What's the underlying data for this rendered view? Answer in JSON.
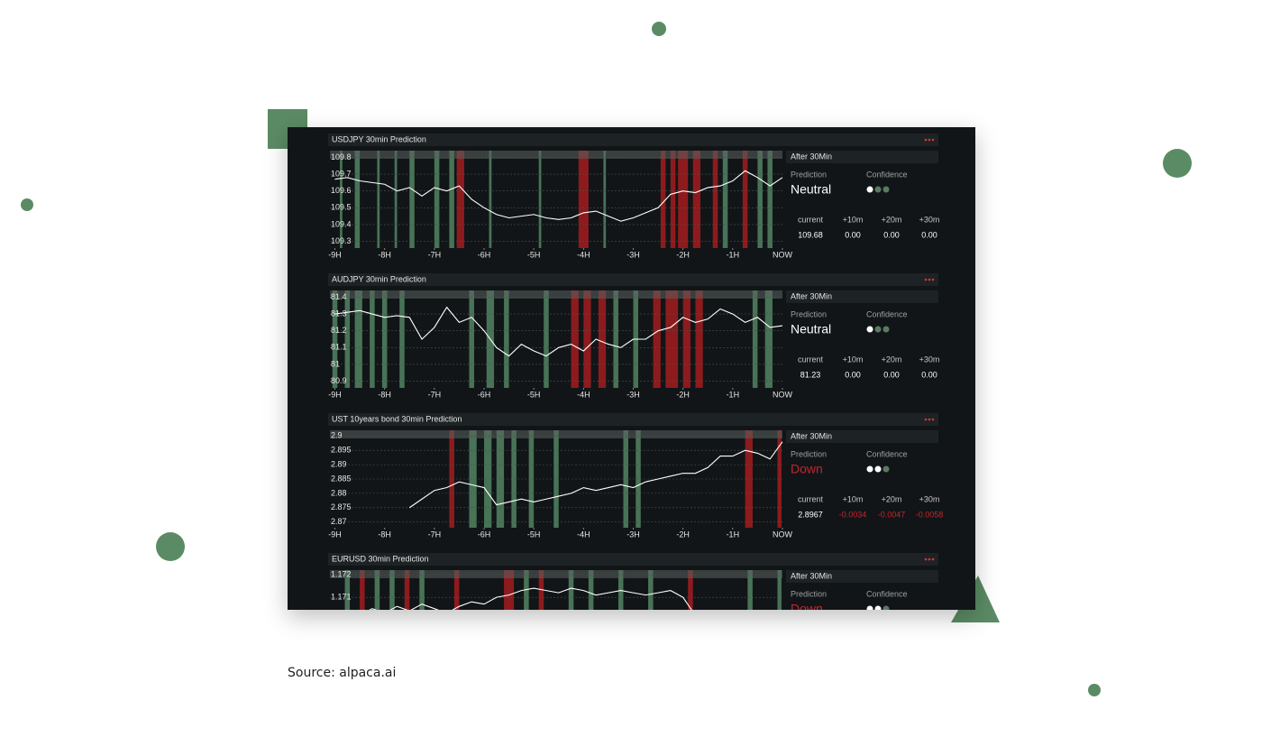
{
  "caption": "Source: alpaca.ai",
  "chart_data": [
    {
      "type": "line",
      "title": "USDJPY 30min Prediction",
      "x": [
        -9,
        -8.75,
        -8.5,
        -8.25,
        -8,
        -7.75,
        -7.5,
        -7.25,
        -7,
        -6.75,
        -6.5,
        -6.25,
        -6,
        -5.75,
        -5.5,
        -5.25,
        -5,
        -4.75,
        -4.5,
        -4.25,
        -4,
        -3.75,
        -3.5,
        -3.25,
        -3,
        -2.75,
        -2.5,
        -2.25,
        -2,
        -1.75,
        -1.5,
        -1.25,
        -1,
        -0.75,
        -0.5,
        -0.25,
        0
      ],
      "values": [
        109.67,
        109.68,
        109.66,
        109.65,
        109.64,
        109.6,
        109.62,
        109.57,
        109.62,
        109.6,
        109.63,
        109.55,
        109.5,
        109.46,
        109.44,
        109.45,
        109.46,
        109.44,
        109.43,
        109.44,
        109.47,
        109.48,
        109.45,
        109.42,
        109.44,
        109.47,
        109.5,
        109.58,
        109.6,
        109.59,
        109.62,
        109.63,
        109.66,
        109.72,
        109.68,
        109.63,
        109.68
      ],
      "color": "#ffffff",
      "xlim": [
        -9.1,
        0
      ],
      "xticks": [
        {
          "value": -9,
          "label": "-9H"
        },
        {
          "value": -8,
          "label": "-8H"
        },
        {
          "value": -7,
          "label": "-7H"
        },
        {
          "value": -6,
          "label": "-6H"
        },
        {
          "value": -5,
          "label": "-5H"
        },
        {
          "value": -4,
          "label": "-4H"
        },
        {
          "value": -3,
          "label": "-3H"
        },
        {
          "value": -2,
          "label": "-2H"
        },
        {
          "value": -1,
          "label": "-1H"
        },
        {
          "value": 0,
          "label": "NOW"
        }
      ],
      "ylim": [
        109.26,
        109.84
      ],
      "yticks": [
        109.8,
        109.7,
        109.6,
        109.5,
        109.4,
        109.3
      ],
      "grid": true,
      "bands": [
        {
          "color": "#4f7d5d",
          "ranges": [
            [
              -8.9,
              -8.85
            ],
            [
              -8.6,
              -8.5
            ],
            [
              -8.15,
              -8.1
            ],
            [
              -7.8,
              -7.75
            ],
            [
              -7.5,
              -7.4
            ],
            [
              -7.0,
              -6.9
            ],
            [
              -6.7,
              -6.6
            ],
            [
              -5.9,
              -5.85
            ],
            [
              -4.9,
              -4.85
            ],
            [
              -3.6,
              -3.55
            ],
            [
              -1.2,
              -1.1
            ],
            [
              -0.5,
              -0.4
            ],
            [
              -0.3,
              -0.2
            ]
          ]
        },
        {
          "color": "#9b1c1f",
          "ranges": [
            [
              -6.55,
              -6.4
            ],
            [
              -4.1,
              -3.9
            ],
            [
              -2.45,
              -2.35
            ],
            [
              -2.25,
              -2.15
            ],
            [
              -2.1,
              -1.9
            ],
            [
              -1.8,
              -1.65
            ],
            [
              -1.4,
              -1.3
            ],
            [
              -0.8,
              -0.7
            ]
          ]
        }
      ]
    },
    {
      "type": "line",
      "title": "AUDJPY 30min Prediction",
      "x": [
        -9,
        -8.75,
        -8.5,
        -8.25,
        -8,
        -7.75,
        -7.5,
        -7.25,
        -7,
        -6.75,
        -6.5,
        -6.25,
        -6,
        -5.75,
        -5.5,
        -5.25,
        -5,
        -4.75,
        -4.5,
        -4.25,
        -4,
        -3.75,
        -3.5,
        -3.25,
        -3,
        -2.75,
        -2.5,
        -2.25,
        -2,
        -1.75,
        -1.5,
        -1.25,
        -1,
        -0.75,
        -0.5,
        -0.25,
        0
      ],
      "values": [
        81.3,
        81.31,
        81.32,
        81.3,
        81.28,
        81.29,
        81.28,
        81.15,
        81.22,
        81.34,
        81.25,
        81.28,
        81.2,
        81.1,
        81.05,
        81.12,
        81.08,
        81.05,
        81.1,
        81.12,
        81.08,
        81.15,
        81.12,
        81.1,
        81.15,
        81.15,
        81.2,
        81.22,
        81.28,
        81.25,
        81.27,
        81.33,
        81.3,
        81.25,
        81.28,
        81.22,
        81.23
      ],
      "color": "#ffffff",
      "xlim": [
        -9.1,
        0
      ],
      "xticks": [
        {
          "value": -9,
          "label": "-9H"
        },
        {
          "value": -8,
          "label": "-8H"
        },
        {
          "value": -7,
          "label": "-7H"
        },
        {
          "value": -6,
          "label": "-6H"
        },
        {
          "value": -5,
          "label": "-5H"
        },
        {
          "value": -4,
          "label": "-4H"
        },
        {
          "value": -3,
          "label": "-3H"
        },
        {
          "value": -2,
          "label": "-2H"
        },
        {
          "value": -1,
          "label": "-1H"
        },
        {
          "value": 0,
          "label": "NOW"
        }
      ],
      "ylim": [
        80.86,
        81.44
      ],
      "yticks": [
        81.4,
        81.3,
        81.2,
        81.1,
        81,
        80.9
      ],
      "grid": true,
      "bands": [
        {
          "color": "#4f7d5d",
          "ranges": [
            [
              -9.05,
              -8.95
            ],
            [
              -8.8,
              -8.7
            ],
            [
              -8.6,
              -8.45
            ],
            [
              -8.3,
              -8.2
            ],
            [
              -8.05,
              -7.95
            ],
            [
              -7.7,
              -7.6
            ],
            [
              -6.3,
              -6.2
            ],
            [
              -5.95,
              -5.8
            ],
            [
              -5.6,
              -5.5
            ],
            [
              -4.8,
              -4.7
            ],
            [
              -3.4,
              -3.3
            ],
            [
              -3.0,
              -2.9
            ],
            [
              -0.6,
              -0.5
            ],
            [
              -0.35,
              -0.2
            ]
          ]
        },
        {
          "color": "#9b1c1f",
          "ranges": [
            [
              -4.25,
              -4.1
            ],
            [
              -4.0,
              -3.85
            ],
            [
              -3.7,
              -3.55
            ],
            [
              -2.6,
              -2.45
            ],
            [
              -2.35,
              -2.1
            ],
            [
              -2.0,
              -1.85
            ],
            [
              -1.75,
              -1.6
            ]
          ]
        }
      ]
    },
    {
      "type": "line",
      "title": "UST 10years bond 30min Prediction",
      "x": [
        -9,
        -8.75,
        -8.5,
        -8.25,
        -8,
        -7.75,
        -7.5,
        -7.25,
        -7,
        -6.75,
        -6.5,
        -6.25,
        -6,
        -5.75,
        -5.5,
        -5.25,
        -5,
        -4.75,
        -4.5,
        -4.25,
        -4,
        -3.75,
        -3.5,
        -3.25,
        -3,
        -2.75,
        -2.5,
        -2.25,
        -2,
        -1.75,
        -1.5,
        -1.25,
        -1,
        -0.75,
        -0.5,
        -0.25,
        0
      ],
      "values": [
        null,
        null,
        null,
        null,
        null,
        null,
        2.875,
        2.878,
        2.881,
        2.882,
        2.884,
        2.883,
        2.882,
        2.876,
        2.877,
        2.878,
        2.877,
        2.878,
        2.879,
        2.88,
        2.882,
        2.881,
        2.882,
        2.883,
        2.882,
        2.884,
        2.885,
        2.886,
        2.887,
        2.887,
        2.889,
        2.893,
        2.893,
        2.895,
        2.894,
        2.892,
        2.898
      ],
      "color": "#ffffff",
      "xlim": [
        -9.1,
        0
      ],
      "xticks": [
        {
          "value": -9,
          "label": "-9H"
        },
        {
          "value": -8,
          "label": "-8H"
        },
        {
          "value": -7,
          "label": "-7H"
        },
        {
          "value": -6,
          "label": "-6H"
        },
        {
          "value": -5,
          "label": "-5H"
        },
        {
          "value": -4,
          "label": "-4H"
        },
        {
          "value": -3,
          "label": "-3H"
        },
        {
          "value": -2,
          "label": "-2H"
        },
        {
          "value": -1,
          "label": "-1H"
        },
        {
          "value": 0,
          "label": "NOW"
        }
      ],
      "ylim": [
        2.868,
        2.902
      ],
      "yticks": [
        2.9,
        2.895,
        2.89,
        2.885,
        2.88,
        2.875,
        2.87
      ],
      "grid": true,
      "bands": [
        {
          "color": "#4f7d5d",
          "ranges": [
            [
              -6.3,
              -6.15
            ],
            [
              -6.0,
              -5.85
            ],
            [
              -5.75,
              -5.6
            ],
            [
              -5.45,
              -5.35
            ],
            [
              -5.1,
              -5.0
            ],
            [
              -4.6,
              -4.5
            ],
            [
              -3.2,
              -3.1
            ],
            [
              -2.95,
              -2.85
            ]
          ]
        },
        {
          "color": "#9b1c1f",
          "ranges": [
            [
              -6.7,
              -6.6
            ],
            [
              -0.75,
              -0.6
            ],
            [
              -0.1,
              -0.02
            ]
          ]
        }
      ]
    },
    {
      "type": "line",
      "title": "EURUSD 30min Prediction",
      "x": [
        -9,
        -8.75,
        -8.5,
        -8.25,
        -8,
        -7.75,
        -7.5,
        -7.25,
        -7,
        -6.75,
        -6.5,
        -6.25,
        -6,
        -5.75,
        -5.5,
        -5.25,
        -5,
        -4.75,
        -4.5,
        -4.25,
        -4,
        -3.75,
        -3.5,
        -3.25,
        -3,
        -2.75,
        -2.5,
        -2.25,
        -2,
        -1.75,
        -1.5,
        -1.25,
        -1,
        -0.75,
        -0.5,
        -0.25,
        0
      ],
      "values": [
        1.1703,
        1.1704,
        1.1702,
        1.1705,
        1.1703,
        1.1706,
        1.1704,
        1.1707,
        1.1705,
        1.1703,
        1.1706,
        1.1708,
        1.1707,
        1.171,
        1.1711,
        1.1713,
        1.1714,
        1.1713,
        1.1712,
        1.1714,
        1.1713,
        1.1711,
        1.1712,
        1.1713,
        1.1712,
        1.1711,
        1.1712,
        1.1713,
        1.171,
        1.1702,
        1.1699,
        1.1696,
        null,
        null,
        null,
        null,
        null
      ],
      "color": "#ffffff",
      "xlim": [
        -9.1,
        0
      ],
      "ylim": [
        1.1679,
        1.1722
      ],
      "yticks": [
        1.172,
        1.171
      ],
      "grid": true,
      "bands": [
        {
          "color": "#4f7d5d",
          "ranges": [
            [
              -8.8,
              -8.7
            ],
            [
              -8.2,
              -8.1
            ],
            [
              -7.9,
              -7.8
            ],
            [
              -7.3,
              -7.2
            ],
            [
              -5.2,
              -5.1
            ],
            [
              -4.3,
              -4.2
            ],
            [
              -3.9,
              -3.8
            ],
            [
              -3.3,
              -3.2
            ],
            [
              -2.7,
              -2.6
            ],
            [
              -0.7,
              -0.6
            ],
            [
              -0.1,
              -0.02
            ]
          ]
        },
        {
          "color": "#9b1c1f",
          "ranges": [
            [
              -8.5,
              -8.4
            ],
            [
              -7.6,
              -7.5
            ],
            [
              -6.6,
              -6.5
            ],
            [
              -5.6,
              -5.4
            ],
            [
              -4.9,
              -4.8
            ],
            [
              -1.9,
              -1.8
            ]
          ]
        }
      ]
    }
  ],
  "side_panels": [
    {
      "header": "After 30Min",
      "prediction_label": "Prediction",
      "prediction": "Neutral",
      "prediction_color": "#ffffff",
      "confidence_label": "Confidence",
      "confidence": 1,
      "confidence_levels": 3,
      "table": {
        "headers": [
          "current",
          "+10m",
          "+20m",
          "+30m"
        ],
        "values": [
          "109.68",
          "0.00",
          "0.00",
          "0.00"
        ],
        "colors": [
          "#ffffff",
          "#ffffff",
          "#ffffff",
          "#ffffff"
        ]
      }
    },
    {
      "header": "After 30Min",
      "prediction_label": "Prediction",
      "prediction": "Neutral",
      "prediction_color": "#ffffff",
      "confidence_label": "Confidence",
      "confidence": 1,
      "confidence_levels": 3,
      "table": {
        "headers": [
          "current",
          "+10m",
          "+20m",
          "+30m"
        ],
        "values": [
          "81.23",
          "0.00",
          "0.00",
          "0.00"
        ],
        "colors": [
          "#ffffff",
          "#ffffff",
          "#ffffff",
          "#ffffff"
        ]
      }
    },
    {
      "header": "After 30Min",
      "prediction_label": "Prediction",
      "prediction": "Down",
      "prediction_color": "#c4262c",
      "confidence_label": "Confidence",
      "confidence": 2,
      "confidence_levels": 3,
      "table": {
        "headers": [
          "current",
          "+10m",
          "+20m",
          "+30m"
        ],
        "values": [
          "2.8967",
          "-0.0034",
          "-0.0047",
          "-0.0058"
        ],
        "colors": [
          "#ffffff",
          "#c4262c",
          "#c4262c",
          "#c4262c"
        ]
      }
    },
    {
      "header": "After 30Min",
      "prediction_label": "Prediction",
      "prediction": "Down",
      "prediction_color": "#c4262c",
      "confidence_label": "Confidence",
      "confidence": 2,
      "confidence_levels": 3
    }
  ]
}
